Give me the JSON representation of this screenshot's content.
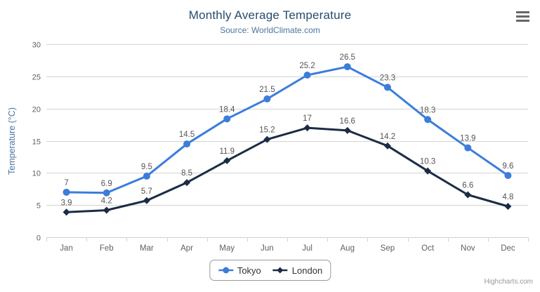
{
  "chart_data": {
    "type": "line",
    "title": "Monthly Average Temperature",
    "subtitle": "Source: WorldClimate.com",
    "categories": [
      "Jan",
      "Feb",
      "Mar",
      "Apr",
      "May",
      "Jun",
      "Jul",
      "Aug",
      "Sep",
      "Oct",
      "Nov",
      "Dec"
    ],
    "series": [
      {
        "name": "Tokyo",
        "color": "#3b7ddb",
        "marker": "circle",
        "values": [
          7,
          6.9,
          9.5,
          14.5,
          18.4,
          21.5,
          25.2,
          26.5,
          23.3,
          18.3,
          13.9,
          9.6
        ]
      },
      {
        "name": "London",
        "color": "#1b2c45",
        "marker": "diamond",
        "values": [
          3.9,
          4.2,
          5.7,
          8.5,
          11.9,
          15.2,
          17,
          16.6,
          14.2,
          10.3,
          6.6,
          4.8
        ]
      }
    ],
    "xlabel": "",
    "ylabel": "Temperature (°C)",
    "ylim": [
      0,
      30
    ],
    "ytick_interval": 5,
    "grid": true,
    "legend_position": "bottom",
    "credits": "Highcharts.com",
    "palette": {
      "title_color": "#274b6d",
      "subtitle_color": "#4d759e",
      "axis_title_color": "#4d759e",
      "axis_label_color": "#606060",
      "data_label_color": "#555555",
      "gridline_color": "#d4d4d4",
      "axis_line_color": "#c7d2de",
      "legend_text_color": "#333333",
      "credits_color": "#999999"
    }
  }
}
